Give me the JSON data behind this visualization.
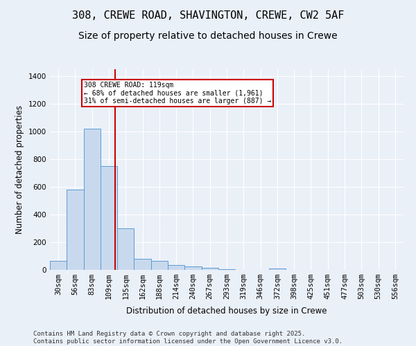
{
  "title_line1": "308, CREWE ROAD, SHAVINGTON, CREWE, CW2 5AF",
  "title_line2": "Size of property relative to detached houses in Crewe",
  "xlabel": "Distribution of detached houses by size in Crewe",
  "ylabel": "Number of detached properties",
  "categories": [
    "30sqm",
    "56sqm",
    "83sqm",
    "109sqm",
    "135sqm",
    "162sqm",
    "188sqm",
    "214sqm",
    "240sqm",
    "267sqm",
    "293sqm",
    "319sqm",
    "346sqm",
    "372sqm",
    "398sqm",
    "425sqm",
    "451sqm",
    "477sqm",
    "503sqm",
    "530sqm",
    "556sqm"
  ],
  "values": [
    65,
    580,
    1020,
    750,
    300,
    80,
    65,
    35,
    25,
    15,
    5,
    0,
    0,
    12,
    0,
    0,
    0,
    0,
    0,
    0,
    0
  ],
  "bar_color": "#c9d9ed",
  "bar_edge_color": "#5b9bd5",
  "reference_line_label": "308 CREWE ROAD: 119sqm",
  "annotation_line1": "← 68% of detached houses are smaller (1,961)",
  "annotation_line2": "31% of semi-detached houses are larger (887) →",
  "annotation_box_color": "#ffffff",
  "annotation_box_edge_color": "#cc0000",
  "vline_color": "#cc0000",
  "ylim": [
    0,
    1450
  ],
  "yticks": [
    0,
    200,
    400,
    600,
    800,
    1000,
    1200,
    1400
  ],
  "background_color": "#eaf0f8",
  "grid_color": "#ffffff",
  "footer": "Contains HM Land Registry data © Crown copyright and database right 2025.\nContains public sector information licensed under the Open Government Licence v3.0.",
  "title_fontsize": 11,
  "subtitle_fontsize": 10,
  "axis_label_fontsize": 8.5,
  "tick_fontsize": 7.5,
  "footer_fontsize": 6.5
}
